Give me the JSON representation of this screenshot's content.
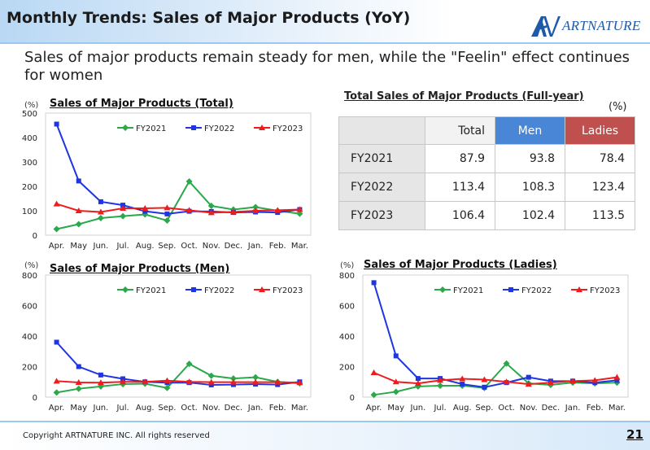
{
  "slide": {
    "title": "Monthly Trends: Sales of Major Products (YoY)",
    "headline": "Sales of major products remain steady for men, while the \"Feelin\" effect continues for women",
    "logo_text": "ARTNATURE",
    "copyright": "Copyright ARTNATURE INC. All rights reserved",
    "page_number": "21"
  },
  "colors": {
    "FY2021": "#2aa84a",
    "FY2022": "#1f35e0",
    "FY2023": "#ee1c1c",
    "men_header": "#4a86d6",
    "ladies_header": "#bf504d"
  },
  "table": {
    "title": "Total Sales of Major Products (Full-year)",
    "unit": "(%)",
    "headers": [
      "",
      "Total",
      "Men",
      "Ladies"
    ],
    "rows": [
      {
        "year": "FY2021",
        "total": "87.9",
        "men": "93.8",
        "ladies": "78.4"
      },
      {
        "year": "FY2022",
        "total": "113.4",
        "men": "108.3",
        "ladies": "123.4"
      },
      {
        "year": "FY2023",
        "total": "106.4",
        "men": "102.4",
        "ladies": "113.5"
      }
    ]
  },
  "chart_data": [
    {
      "type": "line",
      "title": "Sales of Major Products (Total)",
      "ylabel": "(%)",
      "ylim": [
        0,
        500
      ],
      "yticks": [
        0,
        100,
        200,
        300,
        400,
        500
      ],
      "categories": [
        "Apr.",
        "May",
        "Jun.",
        "Jul.",
        "Aug.",
        "Sep.",
        "Oct.",
        "Nov.",
        "Dec.",
        "Jan.",
        "Feb.",
        "Mar."
      ],
      "legend": "top",
      "series": [
        {
          "name": "FY2021",
          "marker": "diamond",
          "values": [
            25,
            45,
            70,
            78,
            85,
            60,
            220,
            120,
            105,
            115,
            100,
            88
          ]
        },
        {
          "name": "FY2022",
          "marker": "square",
          "values": [
            455,
            222,
            137,
            123,
            98,
            87,
            98,
            97,
            93,
            95,
            93,
            105
          ]
        },
        {
          "name": "FY2023",
          "marker": "triangle",
          "values": [
            128,
            100,
            95,
            110,
            110,
            112,
            102,
            92,
            95,
            100,
            102,
            105
          ]
        }
      ]
    },
    {
      "type": "line",
      "title": "Sales of Major Products (Men)",
      "ylabel": "(%)",
      "ylim": [
        0,
        800
      ],
      "yticks": [
        0,
        200,
        400,
        600,
        800
      ],
      "categories": [
        "Apr.",
        "May",
        "Jun.",
        "Jul.",
        "Aug.",
        "Sep.",
        "Oct.",
        "Nov.",
        "Dec.",
        "Jan.",
        "Feb.",
        "Mar."
      ],
      "legend": "top",
      "series": [
        {
          "name": "FY2021",
          "marker": "diamond",
          "values": [
            30,
            55,
            70,
            85,
            88,
            60,
            218,
            140,
            122,
            130,
            100,
            90
          ]
        },
        {
          "name": "FY2022",
          "marker": "square",
          "values": [
            360,
            200,
            145,
            120,
            100,
            95,
            95,
            80,
            82,
            85,
            82,
            100
          ]
        },
        {
          "name": "FY2023",
          "marker": "triangle",
          "values": [
            105,
            96,
            95,
            100,
            100,
            108,
            100,
            98,
            98,
            98,
            98,
            95
          ]
        }
      ]
    },
    {
      "type": "line",
      "title": "Sales of Major Products (Ladies)",
      "ylabel": "(%)",
      "ylim": [
        0,
        800
      ],
      "yticks": [
        0,
        200,
        400,
        600,
        800
      ],
      "categories": [
        "Apr.",
        "May",
        "Jun.",
        "Jul.",
        "Aug.",
        "Sep.",
        "Oct.",
        "Nov.",
        "Dec.",
        "Jan.",
        "Feb.",
        "Mar."
      ],
      "legend": "top",
      "series": [
        {
          "name": "FY2021",
          "marker": "diamond",
          "values": [
            15,
            35,
            70,
            75,
            75,
            60,
            220,
            90,
            80,
            95,
            90,
            95
          ]
        },
        {
          "name": "FY2022",
          "marker": "square",
          "values": [
            750,
            270,
            122,
            122,
            85,
            65,
            95,
            130,
            105,
            105,
            95,
            110
          ]
        },
        {
          "name": "FY2023",
          "marker": "triangle",
          "values": [
            160,
            100,
            90,
            110,
            120,
            115,
            100,
            85,
            95,
            105,
            110,
            130
          ]
        }
      ]
    }
  ]
}
